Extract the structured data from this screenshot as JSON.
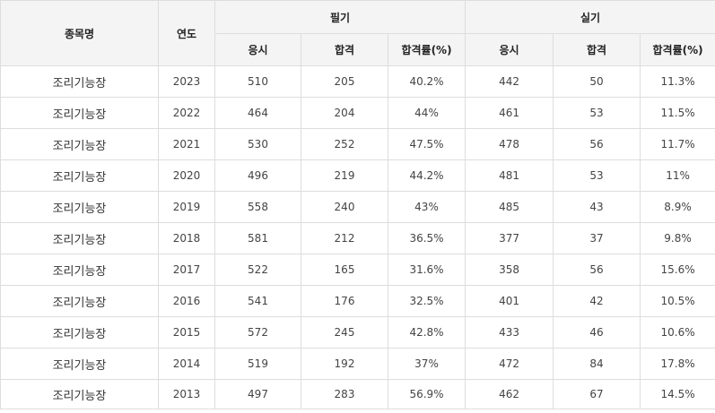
{
  "header": {
    "name": "종목명",
    "year": "연도",
    "written": "필기",
    "practical": "실기",
    "applicants": "응시",
    "passed": "합격",
    "rate": "합격률(%)"
  },
  "rows": [
    {
      "name": "조리기능장",
      "year": "2023",
      "w_app": "510",
      "w_pass": "205",
      "w_rate": "40.2%",
      "p_app": "442",
      "p_pass": "50",
      "p_rate": "11.3%"
    },
    {
      "name": "조리기능장",
      "year": "2022",
      "w_app": "464",
      "w_pass": "204",
      "w_rate": "44%",
      "p_app": "461",
      "p_pass": "53",
      "p_rate": "11.5%"
    },
    {
      "name": "조리기능장",
      "year": "2021",
      "w_app": "530",
      "w_pass": "252",
      "w_rate": "47.5%",
      "p_app": "478",
      "p_pass": "56",
      "p_rate": "11.7%"
    },
    {
      "name": "조리기능장",
      "year": "2020",
      "w_app": "496",
      "w_pass": "219",
      "w_rate": "44.2%",
      "p_app": "481",
      "p_pass": "53",
      "p_rate": "11%"
    },
    {
      "name": "조리기능장",
      "year": "2019",
      "w_app": "558",
      "w_pass": "240",
      "w_rate": "43%",
      "p_app": "485",
      "p_pass": "43",
      "p_rate": "8.9%"
    },
    {
      "name": "조리기능장",
      "year": "2018",
      "w_app": "581",
      "w_pass": "212",
      "w_rate": "36.5%",
      "p_app": "377",
      "p_pass": "37",
      "p_rate": "9.8%"
    },
    {
      "name": "조리기능장",
      "year": "2017",
      "w_app": "522",
      "w_pass": "165",
      "w_rate": "31.6%",
      "p_app": "358",
      "p_pass": "56",
      "p_rate": "15.6%"
    },
    {
      "name": "조리기능장",
      "year": "2016",
      "w_app": "541",
      "w_pass": "176",
      "w_rate": "32.5%",
      "p_app": "401",
      "p_pass": "42",
      "p_rate": "10.5%"
    },
    {
      "name": "조리기능장",
      "year": "2015",
      "w_app": "572",
      "w_pass": "245",
      "w_rate": "42.8%",
      "p_app": "433",
      "p_pass": "46",
      "p_rate": "10.6%"
    },
    {
      "name": "조리기능장",
      "year": "2014",
      "w_app": "519",
      "w_pass": "192",
      "w_rate": "37%",
      "p_app": "472",
      "p_pass": "84",
      "p_rate": "17.8%"
    },
    {
      "name": "조리기능장",
      "year": "2013",
      "w_app": "497",
      "w_pass": "283",
      "w_rate": "56.9%",
      "p_app": "462",
      "p_pass": "67",
      "p_rate": "14.5%"
    }
  ]
}
